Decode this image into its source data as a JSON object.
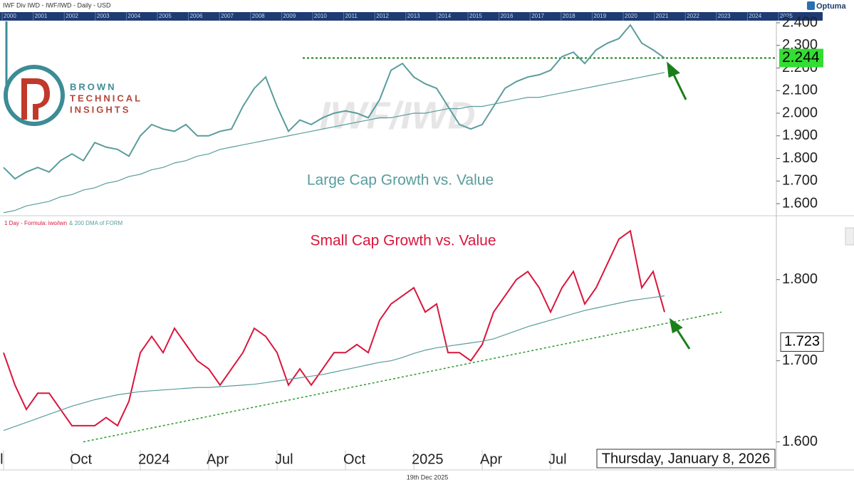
{
  "header": {
    "title": "IWF Div IWD - IWF/IWD - Daily - USD",
    "brand": "Optuma"
  },
  "timeline_years": [
    "2000",
    "2001",
    "2002",
    "2003",
    "2004",
    "2005",
    "2006",
    "2007",
    "2008",
    "2009",
    "2010",
    "2011",
    "2012",
    "2013",
    "2014",
    "2015",
    "2016",
    "2017",
    "2018",
    "2019",
    "2020",
    "2021",
    "2022",
    "2023",
    "2024",
    "2025"
  ],
  "logo": {
    "lines": [
      "BROWN",
      "TECHNICAL",
      "INSIGHTS"
    ]
  },
  "chart_data": [
    {
      "type": "line",
      "watermark": "IWF/IWD",
      "annotation": "Large Cap Growth vs. Value",
      "ylim": [
        1.556,
        2.444
      ],
      "yticks": [
        {
          "value": 1.6,
          "label": "1.600"
        },
        {
          "value": 1.7,
          "label": "1.700"
        },
        {
          "value": 1.8,
          "label": "1.800"
        },
        {
          "value": 1.9,
          "label": "1.900"
        },
        {
          "value": 2.0,
          "label": "2.000"
        },
        {
          "value": 2.1,
          "label": "2.100"
        },
        {
          "value": 2.2,
          "label": "2.200"
        },
        {
          "value": 2.3,
          "label": "2.300"
        },
        {
          "value": 2.4,
          "label": "2.400"
        }
      ],
      "reference_line": 2.244,
      "reference_color": "#33dd33",
      "series": [
        {
          "color": "#5a9c9c",
          "values": [
            1.76,
            1.71,
            1.74,
            1.76,
            1.74,
            1.79,
            1.82,
            1.79,
            1.87,
            1.85,
            1.84,
            1.81,
            1.9,
            1.95,
            1.93,
            1.92,
            1.95,
            1.9,
            1.9,
            1.92,
            1.93,
            2.03,
            2.11,
            2.16,
            2.03,
            1.92,
            1.97,
            1.95,
            1.98,
            2.0,
            2.01,
            2.0,
            1.98,
            2.06,
            2.19,
            2.22,
            2.16,
            2.13,
            2.11,
            2.03,
            1.95,
            1.93,
            1.95,
            2.03,
            2.11,
            2.14,
            2.16,
            2.17,
            2.19,
            2.25,
            2.27,
            2.22,
            2.28,
            2.31,
            2.33,
            2.39,
            2.31,
            2.28,
            2.244
          ]
        },
        {
          "color": "#5a9c9c",
          "values": [
            1.56,
            1.57,
            1.59,
            1.6,
            1.61,
            1.63,
            1.64,
            1.66,
            1.67,
            1.69,
            1.7,
            1.72,
            1.73,
            1.75,
            1.76,
            1.78,
            1.79,
            1.81,
            1.82,
            1.84,
            1.85,
            1.86,
            1.87,
            1.88,
            1.89,
            1.9,
            1.91,
            1.92,
            1.93,
            1.94,
            1.95,
            1.96,
            1.97,
            1.98,
            1.98,
            1.99,
            2.0,
            2.0,
            2.01,
            2.02,
            2.02,
            2.03,
            2.03,
            2.04,
            2.05,
            2.06,
            2.07,
            2.07,
            2.08,
            2.09,
            2.1,
            2.11,
            2.12,
            2.13,
            2.14,
            2.15,
            2.16,
            2.17,
            2.18
          ]
        }
      ]
    },
    {
      "type": "line",
      "annotation": "Small Cap Growth vs. Value",
      "categories": [
        "Jul",
        null,
        null,
        null,
        null,
        null,
        "Oct",
        null,
        null,
        null,
        null,
        null,
        "2024",
        null,
        null,
        null,
        null,
        null,
        "Apr",
        null,
        null,
        null,
        null,
        null,
        "Jul",
        null,
        null,
        null,
        null,
        null,
        "Oct",
        null,
        null,
        null,
        null,
        null,
        "2025",
        null,
        null,
        null,
        null,
        null,
        "Apr",
        null,
        null,
        null,
        null,
        null,
        "Jul",
        null,
        null,
        null,
        null,
        null,
        null,
        null,
        null,
        null,
        null
      ],
      "ylim": [
        1.59,
        1.877
      ],
      "yticks": [
        {
          "value": 1.6,
          "label": "1.600"
        },
        {
          "value": 1.7,
          "label": "1.700"
        },
        {
          "value": 1.8,
          "label": "1.800"
        }
      ],
      "price_label": 1.723,
      "trendline": {
        "x": [
          7,
          63
        ],
        "values": [
          1.6,
          1.76
        ],
        "color": "#2a9a2a"
      },
      "x_axis_note": "19th Dec 2025",
      "date_label": "Thursday, January 8, 2026",
      "series": [
        {
          "name": "1 Day - Formula: iwo/iwn",
          "color": "#d9163c",
          "values": [
            1.71,
            1.67,
            1.64,
            1.66,
            1.66,
            1.64,
            1.62,
            1.62,
            1.62,
            1.63,
            1.62,
            1.65,
            1.71,
            1.73,
            1.71,
            1.74,
            1.72,
            1.7,
            1.69,
            1.67,
            1.69,
            1.71,
            1.74,
            1.73,
            1.71,
            1.67,
            1.69,
            1.67,
            1.69,
            1.71,
            1.71,
            1.72,
            1.71,
            1.75,
            1.77,
            1.78,
            1.79,
            1.76,
            1.77,
            1.71,
            1.71,
            1.7,
            1.72,
            1.76,
            1.78,
            1.8,
            1.81,
            1.79,
            1.76,
            1.79,
            1.81,
            1.77,
            1.79,
            1.82,
            1.85,
            1.86,
            1.79,
            1.81,
            1.76
          ]
        },
        {
          "name": "& 200 DMA of FORM",
          "color": "#5a9c9c",
          "values": [
            1.614,
            1.619,
            1.624,
            1.629,
            1.634,
            1.639,
            1.644,
            1.648,
            1.652,
            1.655,
            1.658,
            1.66,
            1.662,
            1.663,
            1.664,
            1.665,
            1.666,
            1.667,
            1.667,
            1.668,
            1.669,
            1.67,
            1.671,
            1.673,
            1.675,
            1.677,
            1.679,
            1.681,
            1.683,
            1.686,
            1.689,
            1.692,
            1.695,
            1.698,
            1.7,
            1.704,
            1.709,
            1.713,
            1.716,
            1.718,
            1.72,
            1.722,
            1.724,
            1.727,
            1.732,
            1.737,
            1.742,
            1.746,
            1.75,
            1.754,
            1.758,
            1.762,
            1.765,
            1.768,
            1.771,
            1.774,
            1.776,
            1.778,
            1.78
          ]
        }
      ]
    }
  ]
}
